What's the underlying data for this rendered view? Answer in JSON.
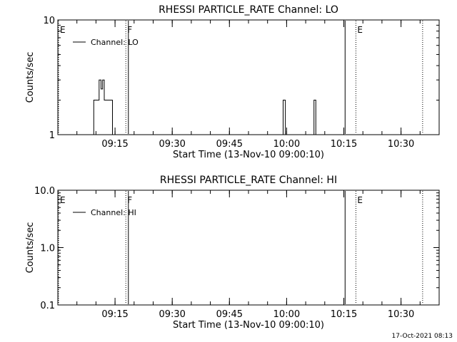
{
  "footer": {
    "timestamp": "17-Oct-2021 08:13"
  },
  "colors": {
    "background": "#ffffff",
    "ink": "#000000"
  },
  "chart_data": [
    {
      "type": "line",
      "title": "RHESSI PARTICLE_RATE Channel: LO",
      "xlabel": "Start Time (13-Nov-10 09:00:10)",
      "ylabel": "Counts/sec",
      "y_scale": "log",
      "ylim": [
        1,
        10
      ],
      "y_ticks": [
        {
          "value": 1,
          "label": "1"
        },
        {
          "value": 10,
          "label": "10"
        }
      ],
      "xlim": [
        "09:00",
        "10:40"
      ],
      "x_ticks": [
        "09:15",
        "09:30",
        "09:45",
        "10:00",
        "10:15",
        "10:30"
      ],
      "legend": {
        "entries": [
          "Channel: LO"
        ],
        "placement": "top-left"
      },
      "grid": false,
      "series": [
        {
          "name": "Channel: LO",
          "points": [
            [
              "09:09:25",
              1
            ],
            [
              "09:09:25",
              2
            ],
            [
              "09:10:50",
              2
            ],
            [
              "09:10:50",
              3
            ],
            [
              "09:11:20",
              3
            ],
            [
              "09:11:20",
              2.5
            ],
            [
              "09:11:45",
              2.5
            ],
            [
              "09:11:45",
              3
            ],
            [
              "09:12:10",
              3
            ],
            [
              "09:12:10",
              2
            ],
            [
              "09:14:20",
              2
            ],
            [
              "09:14:20",
              1
            ],
            [
              "09:59:05",
              1
            ],
            [
              "09:59:05",
              2
            ],
            [
              "09:59:40",
              2
            ],
            [
              "09:59:40",
              1
            ],
            [
              "10:07:10",
              1
            ],
            [
              "10:07:10",
              2
            ],
            [
              "10:07:40",
              2
            ],
            [
              "10:07:40",
              1
            ]
          ]
        }
      ],
      "markers": [
        {
          "time": "09:00",
          "label": "E",
          "style": "dotted"
        },
        {
          "time": "09:17:50",
          "label": "F",
          "style": "dotted"
        },
        {
          "time": "09:18:30",
          "label": "",
          "style": "solid"
        },
        {
          "time": "10:15:20",
          "label": "",
          "style": "solid"
        },
        {
          "time": "10:18:10",
          "label": "E",
          "style": "dotted"
        },
        {
          "time": "10:35:40",
          "label": "",
          "style": "dotted"
        }
      ]
    },
    {
      "type": "line",
      "title": "RHESSI PARTICLE_RATE Channel: HI",
      "xlabel": "Start Time (13-Nov-10 09:00:10)",
      "ylabel": "Counts/sec",
      "y_scale": "log",
      "ylim": [
        0.1,
        10
      ],
      "y_ticks": [
        {
          "value": 0.1,
          "label": "0.1"
        },
        {
          "value": 1,
          "label": "1.0"
        },
        {
          "value": 10,
          "label": "10.0"
        }
      ],
      "xlim": [
        "09:00",
        "10:40"
      ],
      "x_ticks": [
        "09:15",
        "09:30",
        "09:45",
        "10:00",
        "10:15",
        "10:30"
      ],
      "legend": {
        "entries": [
          "Channel: HI"
        ],
        "placement": "top-left"
      },
      "grid": false,
      "series": [
        {
          "name": "Channel: HI",
          "points": []
        }
      ],
      "markers": [
        {
          "time": "09:00",
          "label": "E",
          "style": "dotted"
        },
        {
          "time": "09:17:50",
          "label": "F",
          "style": "dotted"
        },
        {
          "time": "09:18:30",
          "label": "",
          "style": "solid"
        },
        {
          "time": "10:15:20",
          "label": "",
          "style": "solid"
        },
        {
          "time": "10:18:10",
          "label": "E",
          "style": "dotted"
        },
        {
          "time": "10:35:40",
          "label": "",
          "style": "dotted"
        }
      ]
    }
  ]
}
